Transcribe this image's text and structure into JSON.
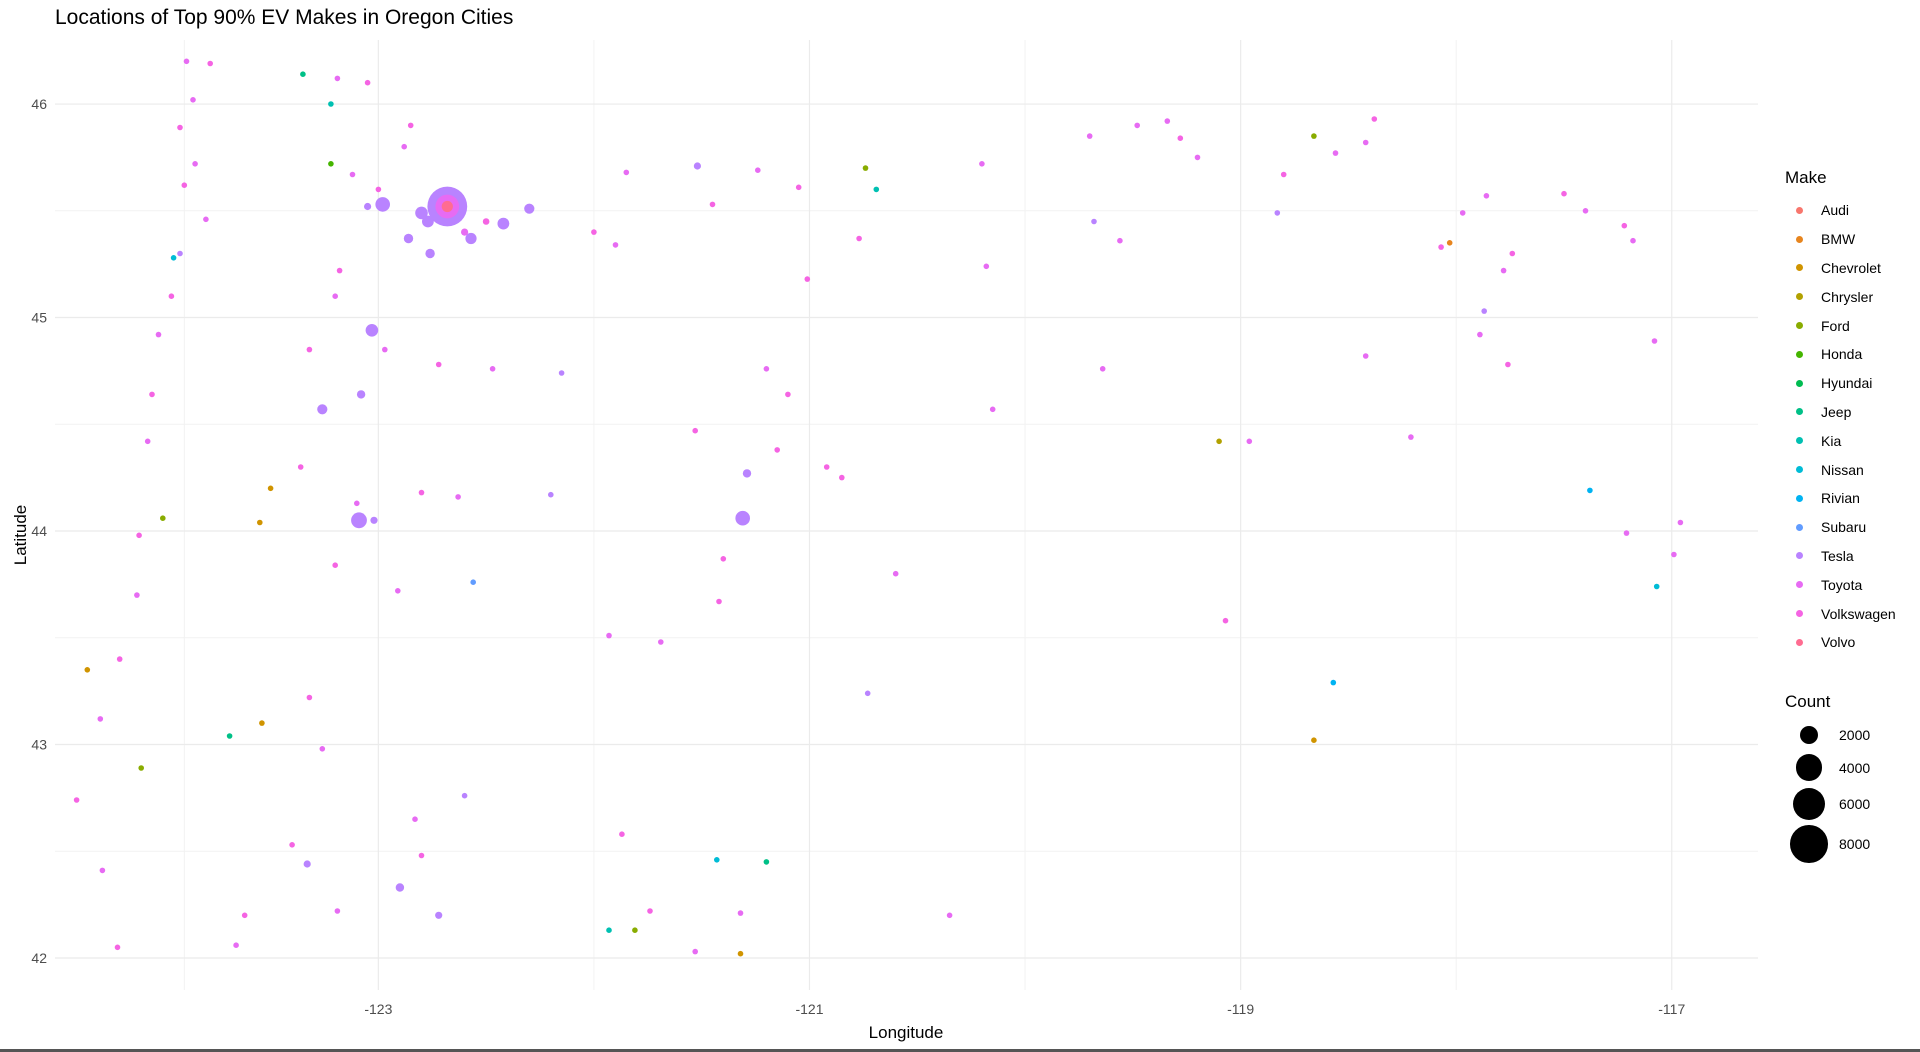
{
  "chart_data": {
    "type": "scatter",
    "title": "Locations of Top 90% EV Makes in Oregon Cities",
    "xlabel": "Longitude",
    "ylabel": "Latitude",
    "xlim": [
      -124.5,
      -116.6
    ],
    "ylim": [
      41.85,
      46.3
    ],
    "x_ticks": [
      -123,
      -121,
      -119,
      -117
    ],
    "y_ticks": [
      42,
      43,
      44,
      45,
      46
    ],
    "x_tick_labels": [
      "-123",
      "-121",
      "-119",
      "-117"
    ],
    "y_tick_labels": [
      "42",
      "43",
      "44",
      "45",
      "46"
    ],
    "grid": true,
    "legend_placement": "right",
    "color_legend_title": "Make",
    "size_legend_title": "Count",
    "makes": [
      {
        "name": "Audi",
        "color": "#F8766D"
      },
      {
        "name": "BMW",
        "color": "#E7851E"
      },
      {
        "name": "Chevrolet",
        "color": "#D09400"
      },
      {
        "name": "Chrysler",
        "color": "#B2A100"
      },
      {
        "name": "Ford",
        "color": "#89AC00"
      },
      {
        "name": "Honda",
        "color": "#45B500"
      },
      {
        "name": "Hyundai",
        "color": "#00BC51"
      },
      {
        "name": "Jeep",
        "color": "#00C087"
      },
      {
        "name": "Kia",
        "color": "#00C0B2"
      },
      {
        "name": "Nissan",
        "color": "#00BCD6"
      },
      {
        "name": "Rivian",
        "color": "#00B3F2"
      },
      {
        "name": "Subaru",
        "color": "#619CFF"
      },
      {
        "name": "Tesla",
        "color": "#B983FF"
      },
      {
        "name": "Toyota",
        "color": "#E76BF3"
      },
      {
        "name": "Volkswagen",
        "color": "#F564E3"
      },
      {
        "name": "Volvo",
        "color": "#FF6C91"
      }
    ],
    "size_legend": [
      {
        "label": "2000",
        "count": 2000
      },
      {
        "label": "4000",
        "count": 4000
      },
      {
        "label": "6000",
        "count": 6000
      },
      {
        "label": "8000",
        "count": 8000
      }
    ],
    "points": [
      {
        "x": -122.68,
        "y": 45.52,
        "make": "Tesla",
        "count": 9000
      },
      {
        "x": -122.68,
        "y": 45.52,
        "make": "Toyota",
        "count": 3200
      },
      {
        "x": -122.68,
        "y": 45.52,
        "make": "Volvo",
        "count": 700
      },
      {
        "x": -122.98,
        "y": 45.53,
        "make": "Tesla",
        "count": 1200
      },
      {
        "x": -122.8,
        "y": 45.49,
        "make": "Tesla",
        "count": 900
      },
      {
        "x": -122.77,
        "y": 45.45,
        "make": "Tesla",
        "count": 800
      },
      {
        "x": -122.57,
        "y": 45.37,
        "make": "Tesla",
        "count": 700
      },
      {
        "x": -122.42,
        "y": 45.44,
        "make": "Tesla",
        "count": 800
      },
      {
        "x": -122.3,
        "y": 45.51,
        "make": "Tesla",
        "count": 600
      },
      {
        "x": -122.86,
        "y": 45.37,
        "make": "Tesla",
        "count": 500
      },
      {
        "x": -122.76,
        "y": 45.3,
        "make": "Tesla",
        "count": 500
      },
      {
        "x": -123.05,
        "y": 45.52,
        "make": "Tesla",
        "count": 300
      },
      {
        "x": -122.6,
        "y": 45.4,
        "make": "Toyota",
        "count": 300
      },
      {
        "x": -122.5,
        "y": 45.45,
        "make": "Volkswagen",
        "count": 250
      },
      {
        "x": -123.03,
        "y": 44.94,
        "make": "Tesla",
        "count": 900
      },
      {
        "x": -123.08,
        "y": 44.64,
        "make": "Tesla",
        "count": 400
      },
      {
        "x": -123.26,
        "y": 44.57,
        "make": "Tesla",
        "count": 600
      },
      {
        "x": -123.09,
        "y": 44.05,
        "make": "Tesla",
        "count": 1400
      },
      {
        "x": -123.02,
        "y": 44.05,
        "make": "Tesla",
        "count": 300
      },
      {
        "x": -121.31,
        "y": 44.06,
        "make": "Tesla",
        "count": 1200
      },
      {
        "x": -121.29,
        "y": 44.27,
        "make": "Tesla",
        "count": 400
      },
      {
        "x": -121.52,
        "y": 45.71,
        "make": "Tesla",
        "count": 300
      },
      {
        "x": -122.9,
        "y": 42.33,
        "make": "Tesla",
        "count": 400
      },
      {
        "x": -123.33,
        "y": 42.44,
        "make": "Tesla",
        "count": 300
      },
      {
        "x": -122.72,
        "y": 42.2,
        "make": "Tesla",
        "count": 300
      },
      {
        "x": -123.22,
        "y": 45.72,
        "make": "Honda",
        "count": 20
      },
      {
        "x": -123.35,
        "y": 46.14,
        "make": "Jeep",
        "count": 20
      },
      {
        "x": -123.22,
        "y": 46.0,
        "make": "Kia",
        "count": 20
      },
      {
        "x": -123.95,
        "y": 45.28,
        "make": "Nissan",
        "count": 20
      },
      {
        "x": -124.0,
        "y": 44.06,
        "make": "Ford",
        "count": 20
      },
      {
        "x": -123.5,
        "y": 44.2,
        "make": "Chevrolet",
        "count": 20
      },
      {
        "x": -123.55,
        "y": 44.04,
        "make": "Chevrolet",
        "count": 20
      },
      {
        "x": -124.35,
        "y": 43.35,
        "make": "Chevrolet",
        "count": 20
      },
      {
        "x": -124.1,
        "y": 42.89,
        "make": "Ford",
        "count": 20
      },
      {
        "x": -123.69,
        "y": 43.04,
        "make": "Jeep",
        "count": 20
      },
      {
        "x": -123.54,
        "y": 43.1,
        "make": "Chevrolet",
        "count": 20
      },
      {
        "x": -122.56,
        "y": 43.76,
        "make": "Subaru",
        "count": 20
      },
      {
        "x": -121.43,
        "y": 42.46,
        "make": "Nissan",
        "count": 20
      },
      {
        "x": -121.2,
        "y": 42.45,
        "make": "Jeep",
        "count": 20
      },
      {
        "x": -121.93,
        "y": 42.13,
        "make": "Kia",
        "count": 20
      },
      {
        "x": -121.81,
        "y": 42.13,
        "make": "Ford",
        "count": 20
      },
      {
        "x": -121.32,
        "y": 42.02,
        "make": "Chevrolet",
        "count": 20
      },
      {
        "x": -120.74,
        "y": 45.7,
        "make": "Ford",
        "count": 20
      },
      {
        "x": -120.69,
        "y": 45.6,
        "make": "Kia",
        "count": 20
      },
      {
        "x": -118.66,
        "y": 45.85,
        "make": "Ford",
        "count": 20
      },
      {
        "x": -118.03,
        "y": 45.35,
        "make": "BMW",
        "count": 20
      },
      {
        "x": -119.1,
        "y": 44.42,
        "make": "Chrysler",
        "count": 20
      },
      {
        "x": -118.66,
        "y": 43.02,
        "make": "Chevrolet",
        "count": 20
      },
      {
        "x": -118.57,
        "y": 43.29,
        "make": "Rivian",
        "count": 20
      },
      {
        "x": -117.38,
        "y": 44.19,
        "make": "Rivian",
        "count": 20
      },
      {
        "x": -117.07,
        "y": 43.74,
        "make": "Nissan",
        "count": 20
      },
      {
        "x": -116.96,
        "y": 44.04,
        "make": "Toyota",
        "count": 20
      },
      {
        "x": -123.89,
        "y": 46.2,
        "make": "Toyota",
        "count": 20
      },
      {
        "x": -123.78,
        "y": 46.19,
        "make": "Volkswagen",
        "count": 20
      },
      {
        "x": -123.86,
        "y": 46.02,
        "make": "Toyota",
        "count": 20
      },
      {
        "x": -123.92,
        "y": 45.89,
        "make": "Volkswagen",
        "count": 20
      },
      {
        "x": -123.85,
        "y": 45.72,
        "make": "Toyota",
        "count": 20
      },
      {
        "x": -123.9,
        "y": 45.62,
        "make": "Volkswagen",
        "count": 20
      },
      {
        "x": -123.8,
        "y": 45.46,
        "make": "Toyota",
        "count": 20
      },
      {
        "x": -123.92,
        "y": 45.3,
        "make": "Tesla",
        "count": 20
      },
      {
        "x": -123.96,
        "y": 45.1,
        "make": "Volkswagen",
        "count": 20
      },
      {
        "x": -124.02,
        "y": 44.92,
        "make": "Toyota",
        "count": 20
      },
      {
        "x": -124.05,
        "y": 44.64,
        "make": "Volkswagen",
        "count": 20
      },
      {
        "x": -124.07,
        "y": 44.42,
        "make": "Toyota",
        "count": 20
      },
      {
        "x": -124.11,
        "y": 43.98,
        "make": "Volkswagen",
        "count": 20
      },
      {
        "x": -124.12,
        "y": 43.7,
        "make": "Toyota",
        "count": 20
      },
      {
        "x": -124.2,
        "y": 43.4,
        "make": "Volkswagen",
        "count": 20
      },
      {
        "x": -124.29,
        "y": 43.12,
        "make": "Toyota",
        "count": 20
      },
      {
        "x": -124.4,
        "y": 42.74,
        "make": "Volkswagen",
        "count": 20
      },
      {
        "x": -124.28,
        "y": 42.41,
        "make": "Toyota",
        "count": 20
      },
      {
        "x": -124.21,
        "y": 42.05,
        "make": "Volkswagen",
        "count": 80
      },
      {
        "x": -123.05,
        "y": 46.1,
        "make": "Volkswagen",
        "count": 20
      },
      {
        "x": -123.19,
        "y": 46.12,
        "make": "Toyota",
        "count": 20
      },
      {
        "x": -122.85,
        "y": 45.9,
        "make": "Volkswagen",
        "count": 20
      },
      {
        "x": -122.88,
        "y": 45.8,
        "make": "Toyota",
        "count": 20
      },
      {
        "x": -123.0,
        "y": 45.6,
        "make": "Volkswagen",
        "count": 60
      },
      {
        "x": -123.12,
        "y": 45.67,
        "make": "Toyota",
        "count": 20
      },
      {
        "x": -123.18,
        "y": 45.22,
        "make": "Volkswagen",
        "count": 60
      },
      {
        "x": -123.2,
        "y": 45.1,
        "make": "Toyota",
        "count": 20
      },
      {
        "x": -123.32,
        "y": 44.85,
        "make": "Volkswagen",
        "count": 20
      },
      {
        "x": -122.97,
        "y": 44.85,
        "make": "Toyota",
        "count": 20
      },
      {
        "x": -122.72,
        "y": 44.78,
        "make": "Volkswagen",
        "count": 20
      },
      {
        "x": -122.47,
        "y": 44.76,
        "make": "Toyota",
        "count": 20
      },
      {
        "x": -122.15,
        "y": 44.74,
        "make": "Tesla",
        "count": 20
      },
      {
        "x": -123.36,
        "y": 44.3,
        "make": "Volkswagen",
        "count": 20
      },
      {
        "x": -123.1,
        "y": 44.13,
        "make": "Toyota",
        "count": 20
      },
      {
        "x": -122.8,
        "y": 44.18,
        "make": "Volkswagen",
        "count": 20
      },
      {
        "x": -122.63,
        "y": 44.16,
        "make": "Toyota",
        "count": 20
      },
      {
        "x": -122.2,
        "y": 44.17,
        "make": "Tesla",
        "count": 20
      },
      {
        "x": -123.2,
        "y": 43.84,
        "make": "Volkswagen",
        "count": 20
      },
      {
        "x": -122.91,
        "y": 43.72,
        "make": "Toyota",
        "count": 20
      },
      {
        "x": -123.32,
        "y": 43.22,
        "make": "Volkswagen",
        "count": 40
      },
      {
        "x": -123.26,
        "y": 42.98,
        "make": "Toyota",
        "count": 20
      },
      {
        "x": -123.4,
        "y": 42.53,
        "make": "Volkswagen",
        "count": 20
      },
      {
        "x": -123.19,
        "y": 42.22,
        "make": "Toyota",
        "count": 20
      },
      {
        "x": -122.8,
        "y": 42.48,
        "make": "Volkswagen",
        "count": 20
      },
      {
        "x": -122.83,
        "y": 42.65,
        "make": "Toyota",
        "count": 20
      },
      {
        "x": -123.66,
        "y": 42.06,
        "make": "Toyota",
        "count": 20
      },
      {
        "x": -123.62,
        "y": 42.2,
        "make": "Volkswagen",
        "count": 20
      },
      {
        "x": -122.6,
        "y": 42.76,
        "make": "Tesla",
        "count": 20
      },
      {
        "x": -121.74,
        "y": 42.22,
        "make": "Volkswagen",
        "count": 60
      },
      {
        "x": -121.87,
        "y": 42.58,
        "make": "Volkswagen",
        "count": 20
      },
      {
        "x": -121.53,
        "y": 42.03,
        "make": "Toyota",
        "count": 20
      },
      {
        "x": -121.32,
        "y": 42.21,
        "make": "Toyota",
        "count": 20
      },
      {
        "x": -121.85,
        "y": 45.68,
        "make": "Toyota",
        "count": 20
      },
      {
        "x": -121.45,
        "y": 45.53,
        "make": "Volkswagen",
        "count": 20
      },
      {
        "x": -121.05,
        "y": 45.61,
        "make": "Volkswagen",
        "count": 40
      },
      {
        "x": -121.24,
        "y": 45.69,
        "make": "Toyota",
        "count": 20
      },
      {
        "x": -122.0,
        "y": 45.4,
        "make": "Volkswagen",
        "count": 20
      },
      {
        "x": -121.9,
        "y": 45.34,
        "make": "Toyota",
        "count": 20
      },
      {
        "x": -121.01,
        "y": 45.18,
        "make": "Volkswagen",
        "count": 20
      },
      {
        "x": -121.1,
        "y": 44.64,
        "make": "Volkswagen",
        "count": 20
      },
      {
        "x": -121.2,
        "y": 44.76,
        "make": "Toyota",
        "count": 20
      },
      {
        "x": -121.53,
        "y": 44.47,
        "make": "Volkswagen",
        "count": 20
      },
      {
        "x": -121.15,
        "y": 44.38,
        "make": "Volkswagen",
        "count": 20
      },
      {
        "x": -120.92,
        "y": 44.3,
        "make": "Volkswagen",
        "count": 40
      },
      {
        "x": -120.85,
        "y": 44.25,
        "make": "Volkswagen",
        "count": 40
      },
      {
        "x": -121.4,
        "y": 43.87,
        "make": "Volkswagen",
        "count": 20
      },
      {
        "x": -121.42,
        "y": 43.67,
        "make": "Volkswagen",
        "count": 20
      },
      {
        "x": -121.93,
        "y": 43.51,
        "make": "Toyota",
        "count": 20
      },
      {
        "x": -121.69,
        "y": 43.48,
        "make": "Toyota",
        "count": 20
      },
      {
        "x": -120.6,
        "y": 43.8,
        "make": "Toyota",
        "count": 20
      },
      {
        "x": -120.35,
        "y": 42.2,
        "make": "Toyota",
        "count": 20
      },
      {
        "x": -120.73,
        "y": 43.24,
        "make": "Tesla",
        "count": 20
      },
      {
        "x": -120.77,
        "y": 45.37,
        "make": "Volkswagen",
        "count": 20
      },
      {
        "x": -120.2,
        "y": 45.72,
        "make": "Toyota",
        "count": 20
      },
      {
        "x": -120.18,
        "y": 45.24,
        "make": "Toyota",
        "count": 20
      },
      {
        "x": -120.15,
        "y": 44.57,
        "make": "Toyota",
        "count": 20
      },
      {
        "x": -119.7,
        "y": 45.85,
        "make": "Toyota",
        "count": 20
      },
      {
        "x": -119.48,
        "y": 45.9,
        "make": "Toyota",
        "count": 20
      },
      {
        "x": -119.34,
        "y": 45.92,
        "make": "Toyota",
        "count": 20
      },
      {
        "x": -119.28,
        "y": 45.84,
        "make": "Volkswagen",
        "count": 20
      },
      {
        "x": -119.2,
        "y": 45.75,
        "make": "Toyota",
        "count": 20
      },
      {
        "x": -119.68,
        "y": 45.45,
        "make": "Tesla",
        "count": 20
      },
      {
        "x": -119.56,
        "y": 45.36,
        "make": "Toyota",
        "count": 20
      },
      {
        "x": -119.64,
        "y": 44.76,
        "make": "Toyota",
        "count": 20
      },
      {
        "x": -118.96,
        "y": 44.42,
        "make": "Toyota",
        "count": 20
      },
      {
        "x": -118.8,
        "y": 45.67,
        "make": "Volkswagen",
        "count": 20
      },
      {
        "x": -118.83,
        "y": 45.49,
        "make": "Tesla",
        "count": 20
      },
      {
        "x": -118.56,
        "y": 45.77,
        "make": "Toyota",
        "count": 20
      },
      {
        "x": -118.42,
        "y": 45.82,
        "make": "Toyota",
        "count": 20
      },
      {
        "x": -118.38,
        "y": 45.93,
        "make": "Volkswagen",
        "count": 20
      },
      {
        "x": -118.42,
        "y": 44.82,
        "make": "Toyota",
        "count": 20
      },
      {
        "x": -118.21,
        "y": 44.44,
        "make": "Toyota",
        "count": 20
      },
      {
        "x": -119.07,
        "y": 43.58,
        "make": "Volkswagen",
        "count": 40
      },
      {
        "x": -118.07,
        "y": 45.33,
        "make": "Volkswagen",
        "count": 20
      },
      {
        "x": -117.97,
        "y": 45.49,
        "make": "Toyota",
        "count": 20
      },
      {
        "x": -117.86,
        "y": 45.57,
        "make": "Toyota",
        "count": 20
      },
      {
        "x": -117.78,
        "y": 45.22,
        "make": "Toyota",
        "count": 20
      },
      {
        "x": -117.74,
        "y": 45.3,
        "make": "Volkswagen",
        "count": 20
      },
      {
        "x": -117.87,
        "y": 45.03,
        "make": "Tesla",
        "count": 20
      },
      {
        "x": -117.89,
        "y": 44.92,
        "make": "Toyota",
        "count": 20
      },
      {
        "x": -117.76,
        "y": 44.78,
        "make": "Volkswagen",
        "count": 20
      },
      {
        "x": -117.5,
        "y": 45.58,
        "make": "Volkswagen",
        "count": 20
      },
      {
        "x": -117.4,
        "y": 45.5,
        "make": "Toyota",
        "count": 20
      },
      {
        "x": -117.22,
        "y": 45.43,
        "make": "Volkswagen",
        "count": 20
      },
      {
        "x": -117.18,
        "y": 45.36,
        "make": "Toyota",
        "count": 20
      },
      {
        "x": -117.08,
        "y": 44.89,
        "make": "Toyota",
        "count": 20
      },
      {
        "x": -117.21,
        "y": 43.99,
        "make": "Toyota",
        "count": 20
      },
      {
        "x": -116.99,
        "y": 43.89,
        "make": "Toyota",
        "count": 20
      }
    ]
  }
}
